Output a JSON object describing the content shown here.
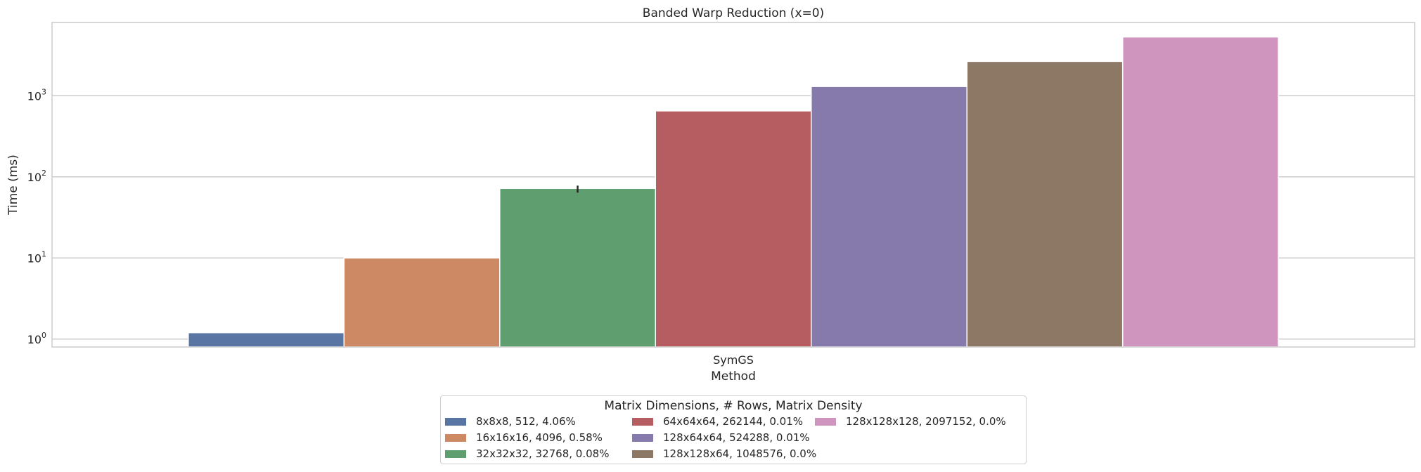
{
  "chart_data": {
    "type": "bar",
    "title": "Banded Warp Reduction (x=0)",
    "xlabel": "Method",
    "ylabel": "Time (ms)",
    "yscale": "log",
    "ylim": [
      0.8,
      8000
    ],
    "yticks": [
      1,
      10,
      100,
      1000
    ],
    "ytick_labels": [
      {
        "base": "10",
        "exp": "0"
      },
      {
        "base": "10",
        "exp": "1"
      },
      {
        "base": "10",
        "exp": "2"
      },
      {
        "base": "10",
        "exp": "3"
      }
    ],
    "categories": [
      "SymGS"
    ],
    "grid": true,
    "legend_title": "Matrix Dimensions, # Rows, Matrix Density",
    "legend_placement": "below-center",
    "series": [
      {
        "name": "8x8x8, 512, 4.06%",
        "values": [
          1.2
        ],
        "color": "#5875a4"
      },
      {
        "name": "16x16x16, 4096, 0.58%",
        "values": [
          10
        ],
        "color": "#cc8963"
      },
      {
        "name": "32x32x32, 32768, 0.08%",
        "values": [
          72
        ],
        "color": "#5f9e6e",
        "error_high": 78
      },
      {
        "name": "64x64x64, 262144, 0.01%",
        "values": [
          650
        ],
        "color": "#b55d60"
      },
      {
        "name": "128x64x64, 524288, 0.01%",
        "values": [
          1300
        ],
        "color": "#857aab"
      },
      {
        "name": "128x128x64, 1048576, 0.0%",
        "values": [
          2650
        ],
        "color": "#8d7866"
      },
      {
        "name": "128x128x128, 2097152, 0.0%",
        "values": [
          5300
        ],
        "color": "#d095bf"
      }
    ]
  }
}
